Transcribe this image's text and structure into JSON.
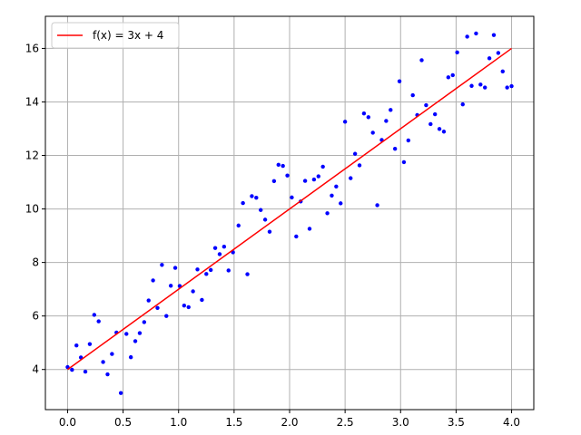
{
  "chart_data": {
    "type": "scatter",
    "title": "",
    "xlabel": "",
    "ylabel": "",
    "xlim": [
      -0.2,
      4.2
    ],
    "ylim": [
      2.5,
      17.2
    ],
    "xticks": [
      0.0,
      0.5,
      1.0,
      1.5,
      2.0,
      2.5,
      3.0,
      3.5,
      4.0
    ],
    "xtick_labels": [
      "0.0",
      "0.5",
      "1.0",
      "1.5",
      "2.0",
      "2.5",
      "3.0",
      "3.5",
      "4.0"
    ],
    "yticks": [
      4,
      6,
      8,
      10,
      12,
      14,
      16
    ],
    "ytick_labels": [
      "4",
      "6",
      "8",
      "10",
      "12",
      "14",
      "16"
    ],
    "grid": true,
    "legend": {
      "position": "top-left",
      "entries": [
        "f(x) = 3x + 4"
      ]
    },
    "series": [
      {
        "kind": "scatter",
        "color": "#0000ff",
        "points": [
          [
            0.0,
            4.09
          ],
          [
            0.04,
            3.99
          ],
          [
            0.08,
            4.9
          ],
          [
            0.12,
            4.45
          ],
          [
            0.16,
            3.92
          ],
          [
            0.2,
            4.95
          ],
          [
            0.24,
            6.04
          ],
          [
            0.28,
            5.8
          ],
          [
            0.32,
            4.28
          ],
          [
            0.36,
            3.82
          ],
          [
            0.4,
            4.58
          ],
          [
            0.44,
            5.38
          ],
          [
            0.48,
            3.12
          ],
          [
            0.53,
            5.33
          ],
          [
            0.57,
            4.46
          ],
          [
            0.61,
            5.06
          ],
          [
            0.65,
            5.36
          ],
          [
            0.69,
            5.77
          ],
          [
            0.73,
            6.58
          ],
          [
            0.77,
            7.33
          ],
          [
            0.81,
            6.3
          ],
          [
            0.85,
            7.91
          ],
          [
            0.89,
            6.0
          ],
          [
            0.93,
            7.13
          ],
          [
            0.97,
            7.8
          ],
          [
            1.01,
            7.12
          ],
          [
            1.05,
            6.39
          ],
          [
            1.09,
            6.33
          ],
          [
            1.13,
            6.92
          ],
          [
            1.17,
            7.74
          ],
          [
            1.21,
            6.6
          ],
          [
            1.25,
            7.57
          ],
          [
            1.29,
            7.72
          ],
          [
            1.33,
            8.54
          ],
          [
            1.37,
            8.31
          ],
          [
            1.41,
            8.59
          ],
          [
            1.45,
            7.7
          ],
          [
            1.49,
            8.38
          ],
          [
            1.54,
            9.38
          ],
          [
            1.58,
            10.22
          ],
          [
            1.62,
            7.56
          ],
          [
            1.66,
            10.48
          ],
          [
            1.7,
            10.42
          ],
          [
            1.74,
            9.96
          ],
          [
            1.78,
            9.6
          ],
          [
            1.82,
            9.15
          ],
          [
            1.86,
            11.04
          ],
          [
            1.9,
            11.65
          ],
          [
            1.94,
            11.61
          ],
          [
            1.98,
            11.25
          ],
          [
            2.02,
            10.43
          ],
          [
            2.06,
            8.97
          ],
          [
            2.1,
            10.28
          ],
          [
            2.14,
            11.05
          ],
          [
            2.18,
            9.26
          ],
          [
            2.22,
            11.1
          ],
          [
            2.26,
            11.22
          ],
          [
            2.3,
            11.58
          ],
          [
            2.34,
            9.84
          ],
          [
            2.38,
            10.5
          ],
          [
            2.42,
            10.84
          ],
          [
            2.46,
            10.21
          ],
          [
            2.5,
            13.26
          ],
          [
            2.55,
            11.15
          ],
          [
            2.59,
            12.06
          ],
          [
            2.63,
            11.63
          ],
          [
            2.67,
            13.57
          ],
          [
            2.71,
            13.43
          ],
          [
            2.75,
            12.85
          ],
          [
            2.79,
            10.14
          ],
          [
            2.83,
            12.58
          ],
          [
            2.87,
            13.29
          ],
          [
            2.91,
            13.7
          ],
          [
            2.95,
            12.25
          ],
          [
            2.99,
            14.77
          ],
          [
            3.03,
            11.75
          ],
          [
            3.07,
            12.56
          ],
          [
            3.11,
            14.25
          ],
          [
            3.15,
            13.51
          ],
          [
            3.19,
            15.56
          ],
          [
            3.23,
            13.88
          ],
          [
            3.27,
            13.17
          ],
          [
            3.31,
            13.54
          ],
          [
            3.35,
            12.99
          ],
          [
            3.39,
            12.89
          ],
          [
            3.43,
            14.92
          ],
          [
            3.47,
            15.0
          ],
          [
            3.51,
            15.85
          ],
          [
            3.56,
            13.91
          ],
          [
            3.6,
            16.44
          ],
          [
            3.64,
            14.6
          ],
          [
            3.68,
            16.56
          ],
          [
            3.72,
            14.65
          ],
          [
            3.76,
            14.54
          ],
          [
            3.8,
            15.63
          ],
          [
            3.84,
            16.5
          ],
          [
            3.88,
            15.83
          ],
          [
            3.92,
            15.14
          ],
          [
            3.96,
            14.54
          ],
          [
            4.0,
            14.59
          ]
        ]
      },
      {
        "kind": "line",
        "name": "f(x) = 3x + 4",
        "color": "#ff0000",
        "x": [
          0,
          4
        ],
        "y": [
          4,
          16
        ]
      }
    ]
  }
}
